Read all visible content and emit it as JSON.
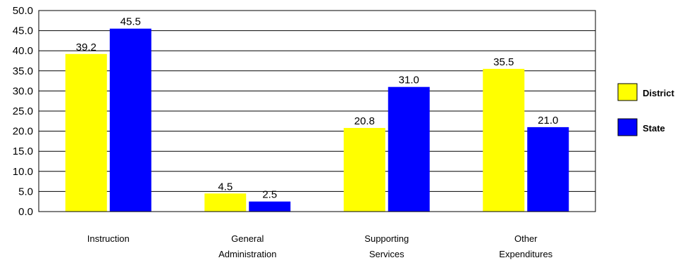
{
  "chart_data": {
    "type": "bar",
    "categories": [
      [
        "Instruction"
      ],
      [
        "General",
        "Administration"
      ],
      [
        "Supporting",
        "Services"
      ],
      [
        "Other",
        "Expenditures"
      ]
    ],
    "series": [
      {
        "name": "District",
        "color": "#FFFF00",
        "values": [
          39.2,
          4.5,
          20.8,
          35.5
        ]
      },
      {
        "name": "State",
        "color": "#0000FF",
        "values": [
          45.5,
          2.5,
          31.0,
          21.0
        ]
      }
    ],
    "yticks": [
      "0.0",
      "5.0",
      "10.0",
      "15.0",
      "20.0",
      "25.0",
      "30.0",
      "35.0",
      "40.0",
      "45.0",
      "50.0"
    ],
    "ylim": [
      0,
      50
    ],
    "grid": true,
    "legend_position": "right"
  }
}
